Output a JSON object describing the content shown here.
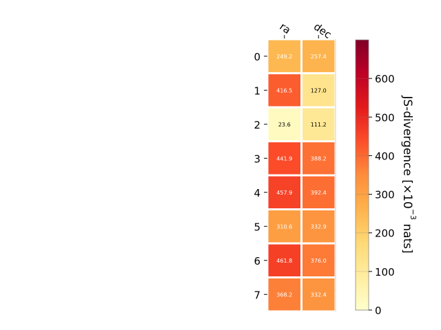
{
  "chart_data": {
    "type": "heatmap",
    "x_categories": [
      "ra",
      "dec"
    ],
    "y_categories": [
      "0",
      "1",
      "2",
      "3",
      "4",
      "5",
      "6",
      "7"
    ],
    "values": [
      [
        249.2,
        257.4
      ],
      [
        416.5,
        127.0
      ],
      [
        23.6,
        111.2
      ],
      [
        441.9,
        388.2
      ],
      [
        457.9,
        392.4
      ],
      [
        310.6,
        332.9
      ],
      [
        461.8,
        376.0
      ],
      [
        368.2,
        332.4
      ]
    ],
    "value_labels": [
      [
        "249.2",
        "257.4"
      ],
      [
        "416.5",
        "127.0"
      ],
      [
        "23.6",
        "111.2"
      ],
      [
        "441.9",
        "388.2"
      ],
      [
        "457.9",
        "392.4"
      ],
      [
        "310.6",
        "332.9"
      ],
      [
        "461.8",
        "376.0"
      ],
      [
        "368.2",
        "332.4"
      ]
    ],
    "colormap": "YlOrRd",
    "colorbar": {
      "label_prefix": "JS-divergence [×10",
      "label_exponent": "−3",
      "label_suffix": " nats]",
      "range": [
        0,
        700
      ],
      "ticks": [
        "0",
        "100",
        "200",
        "300",
        "400",
        "500",
        "600"
      ],
      "tick_values": [
        0,
        100,
        200,
        300,
        400,
        500,
        600
      ]
    },
    "grid": false
  }
}
